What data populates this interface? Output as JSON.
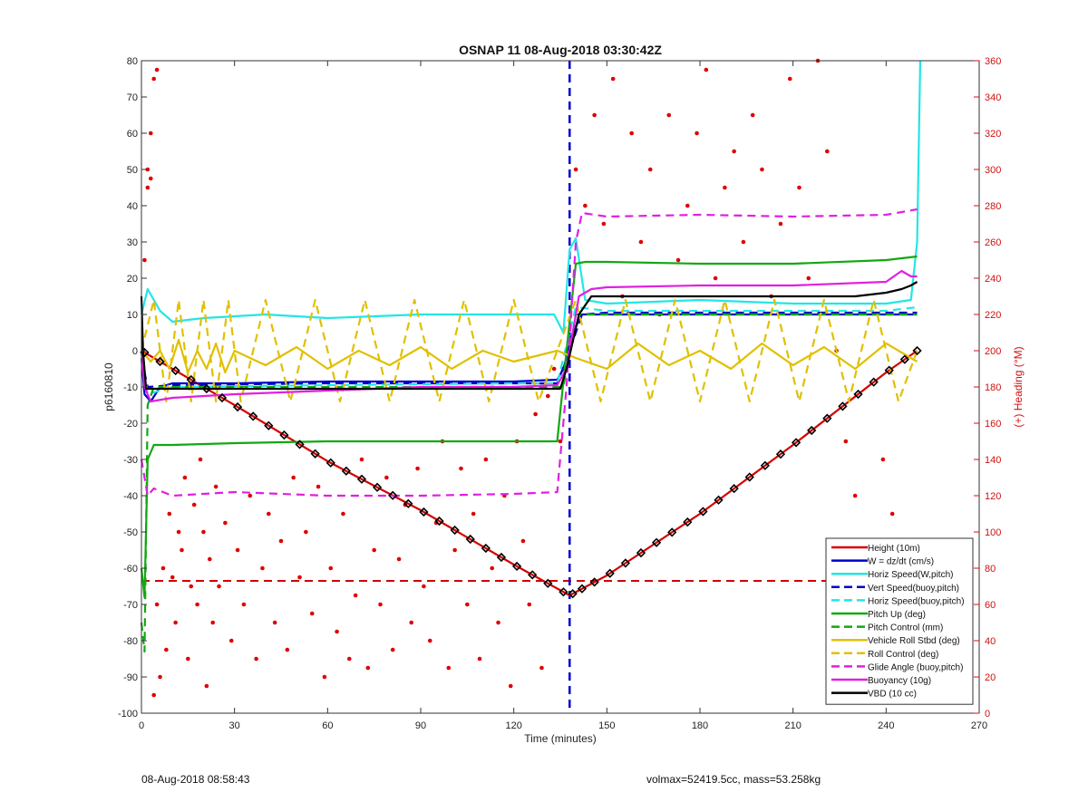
{
  "chart_data": {
    "type": "line",
    "title": "OSNAP 11 08-Aug-2018 03:30:42Z",
    "xlabel": "Time (minutes)",
    "ylabel": "p6160810",
    "y2label": "(+) Heading (°M)",
    "xlim": [
      0,
      270
    ],
    "ylim": [
      -100,
      80
    ],
    "y2lim": [
      0,
      360
    ],
    "xticks": [
      0,
      30,
      60,
      90,
      120,
      150,
      180,
      210,
      240,
      270
    ],
    "yticks": [
      80,
      70,
      60,
      50,
      40,
      30,
      20,
      10,
      0,
      -10,
      -20,
      -30,
      -40,
      -50,
      -60,
      -70,
      -80,
      -90,
      -100
    ],
    "y2ticks": [
      360,
      340,
      320,
      300,
      280,
      260,
      240,
      220,
      200,
      180,
      160,
      140,
      120,
      100,
      80,
      60,
      40,
      20,
      0
    ],
    "grid": false,
    "legend_position": "bottom-right",
    "colors": {
      "height": "#d40000",
      "w": "#0000c8",
      "horiz": "#22e6e6",
      "pitch": "#12a812",
      "roll": "#e0c000",
      "glide": "#e020e0",
      "buoy": "#e020e0",
      "vbd": "#000000",
      "heading": "#e00000"
    },
    "series": [
      {
        "name": "Height (10m)",
        "style": "solid",
        "colorKey": "height",
        "x": [
          0,
          30,
          60,
          90,
          120,
          138,
          150,
          180,
          210,
          240,
          250
        ],
        "y": [
          0,
          -15,
          -30.5,
          -44,
          -59,
          -67.5,
          -62,
          -45,
          -26,
          -6,
          0
        ]
      },
      {
        "name": "W = dz/dt (cm/s)",
        "style": "solid",
        "colorKey": "w",
        "x": [
          0,
          1,
          3,
          6,
          10,
          20,
          30,
          60,
          90,
          120,
          134,
          136,
          139,
          142,
          150,
          180,
          210,
          240,
          250
        ],
        "y": [
          -2,
          -12,
          -14,
          -10,
          -9,
          -9,
          -9,
          -8.5,
          -8.5,
          -8.5,
          -8,
          -5,
          5,
          10,
          10,
          10,
          10,
          10,
          10
        ]
      },
      {
        "name": "Horiz Speed(W,pitch)",
        "style": "solid",
        "colorKey": "horiz",
        "x": [
          0,
          2,
          6,
          10,
          20,
          40,
          60,
          90,
          120,
          133,
          136,
          138,
          140,
          143,
          150,
          180,
          210,
          240,
          248,
          250,
          251
        ],
        "y": [
          10,
          17,
          11,
          8,
          9,
          10,
          9,
          10,
          10,
          10,
          5,
          28,
          31,
          14,
          13,
          14,
          13,
          13,
          14,
          30,
          80
        ]
      },
      {
        "name": "Vert Speed(buoy,pitch)",
        "style": "dashed",
        "colorKey": "w",
        "x": [
          0,
          2,
          10,
          60,
          120,
          134,
          138,
          142,
          150,
          180,
          210,
          240,
          250
        ],
        "y": [
          -2,
          -10,
          -9.5,
          -9,
          -9,
          -9,
          0,
          10,
          10.5,
          10.5,
          10.5,
          10.5,
          10.5
        ]
      },
      {
        "name": "Horiz Speed(buoy,pitch)",
        "style": "dashed",
        "colorKey": "horiz",
        "x": [
          0,
          2,
          10,
          60,
          120,
          134,
          140,
          150,
          180,
          210,
          240,
          250
        ],
        "y": [
          -2,
          -12,
          -10,
          -9.5,
          -9,
          -9,
          12,
          11,
          11,
          11,
          11,
          12
        ]
      },
      {
        "name": "Pitch Up (deg)",
        "style": "solid",
        "colorKey": "pitch",
        "x": [
          0,
          1,
          2,
          4,
          10,
          30,
          60,
          90,
          120,
          134,
          137,
          140,
          143,
          150,
          180,
          210,
          240,
          250
        ],
        "y": [
          -60,
          -68,
          -30,
          -26,
          -26,
          -25.5,
          -25,
          -25,
          -25,
          -25,
          0,
          24,
          24.5,
          24.5,
          24,
          24,
          25,
          26
        ]
      },
      {
        "name": "Pitch Control (mm)",
        "style": "dashed",
        "colorKey": "pitch",
        "x": [
          0,
          1,
          2,
          4,
          10,
          60,
          120,
          136,
          140,
          150,
          180,
          210,
          240,
          250
        ],
        "y": [
          -75,
          -83,
          -15,
          -10,
          -10,
          -10,
          -10,
          -10,
          10,
          10,
          10,
          10,
          10,
          10
        ]
      },
      {
        "name": "Vehicle Roll Stbd (deg)",
        "style": "solid",
        "colorKey": "roll",
        "x": [
          0,
          3,
          6,
          9,
          12,
          15,
          18,
          21,
          24,
          27,
          30,
          40,
          50,
          60,
          70,
          80,
          90,
          100,
          110,
          120,
          134,
          140,
          150,
          160,
          170,
          180,
          190,
          200,
          210,
          220,
          230,
          240,
          250
        ],
        "y": [
          0,
          -3,
          0,
          -5,
          3,
          -6,
          0,
          -5,
          2,
          -6,
          0,
          -4,
          1,
          -5,
          0,
          -4,
          1,
          -5,
          0,
          -3,
          0,
          -2,
          -5,
          2,
          -4,
          0,
          -5,
          2,
          -4,
          1,
          -5,
          2,
          -3
        ]
      },
      {
        "name": "Roll Control (deg)",
        "style": "dashed",
        "colorKey": "roll",
        "x": [
          0,
          4,
          8,
          12,
          16,
          20,
          24,
          28,
          32,
          40,
          48,
          56,
          64,
          72,
          80,
          88,
          96,
          104,
          112,
          120,
          128,
          134,
          140,
          148,
          156,
          164,
          172,
          180,
          188,
          196,
          204,
          212,
          220,
          228,
          236,
          244,
          250
        ],
        "y": [
          0,
          14,
          -14,
          14,
          -14,
          14,
          -14,
          14,
          -14,
          14,
          -14,
          14,
          -14,
          14,
          -14,
          14,
          -14,
          14,
          -14,
          14,
          -14,
          0,
          14,
          -14,
          14,
          -14,
          14,
          -14,
          14,
          -14,
          14,
          -14,
          14,
          -14,
          14,
          -14,
          0
        ]
      },
      {
        "name": "Glide Angle (buoy,pitch)",
        "style": "dashed",
        "colorKey": "glide",
        "x": [
          0,
          2,
          4,
          10,
          30,
          60,
          90,
          120,
          134,
          137,
          140,
          142,
          150,
          180,
          210,
          240,
          250
        ],
        "y": [
          -30,
          -40,
          -38,
          -40,
          -39,
          -40,
          -40,
          -39.5,
          -39,
          -10,
          30,
          38,
          37,
          37.5,
          37,
          37.5,
          39
        ]
      },
      {
        "name": "Buoyancy (10g)",
        "style": "solid",
        "colorKey": "buoy",
        "x": [
          0,
          1,
          3,
          10,
          30,
          60,
          90,
          120,
          134,
          137,
          141,
          145,
          150,
          180,
          210,
          240,
          245,
          248,
          250
        ],
        "y": [
          0,
          -10,
          -14,
          -13,
          -12,
          -11,
          -10,
          -10,
          -9.5,
          -5,
          15,
          17,
          17.5,
          18,
          18,
          19,
          22,
          20.5,
          20.5
        ]
      },
      {
        "name": "VBD (10 cc)",
        "style": "solid",
        "colorKey": "vbd",
        "x": [
          0,
          0.5,
          1.5,
          10,
          60,
          120,
          135,
          137,
          141,
          145,
          150,
          180,
          210,
          230,
          240,
          245,
          248,
          250
        ],
        "y": [
          15,
          0,
          -10.5,
          -10.5,
          -10.5,
          -10.5,
          -10.5,
          -5,
          10,
          15,
          15,
          15,
          15,
          15,
          16,
          17,
          18,
          19
        ]
      }
    ],
    "reference_lines": [
      {
        "axis": "y",
        "value": -63.5,
        "style": "dashed",
        "colorKey": "height"
      },
      {
        "axis": "x",
        "value": 138,
        "style": "dashed",
        "colorKey": "w"
      }
    ],
    "markers_on_height": {
      "x": [
        1,
        6,
        11,
        16,
        21,
        26,
        31,
        36,
        41,
        46,
        51,
        56,
        61,
        66,
        71,
        76,
        81,
        86,
        91,
        96,
        101,
        106,
        111,
        116,
        121,
        126,
        131,
        136,
        139,
        142,
        146,
        151,
        156,
        161,
        166,
        171,
        176,
        181,
        186,
        191,
        196,
        201,
        206,
        211,
        216,
        221,
        226,
        231,
        236,
        241,
        246,
        250
      ]
    },
    "heading_points": {
      "x": [
        1,
        2,
        2,
        3,
        3,
        4,
        4,
        5,
        5,
        6,
        7,
        8,
        9,
        10,
        11,
        12,
        13,
        14,
        15,
        16,
        17,
        18,
        19,
        20,
        21,
        22,
        23,
        24,
        25,
        27,
        29,
        31,
        33,
        35,
        37,
        39,
        41,
        43,
        45,
        47,
        49,
        51,
        53,
        55,
        57,
        59,
        61,
        63,
        65,
        67,
        69,
        71,
        73,
        75,
        77,
        79,
        81,
        83,
        85,
        87,
        89,
        91,
        93,
        95,
        97,
        99,
        101,
        103,
        105,
        107,
        109,
        111,
        113,
        115,
        117,
        119,
        121,
        123,
        125,
        127,
        129,
        131,
        133,
        135,
        140,
        143,
        146,
        149,
        152,
        155,
        158,
        161,
        164,
        167,
        170,
        173,
        176,
        179,
        182,
        185,
        188,
        191,
        194,
        197,
        200,
        203,
        206,
        209,
        212,
        215,
        218,
        221,
        224,
        227,
        230,
        233,
        236,
        239,
        242,
        245,
        248
      ],
      "y": [
        250,
        290,
        300,
        295,
        320,
        350,
        10,
        355,
        60,
        20,
        80,
        35,
        110,
        75,
        50,
        100,
        90,
        130,
        30,
        70,
        115,
        60,
        140,
        100,
        15,
        85,
        50,
        125,
        70,
        105,
        40,
        90,
        60,
        120,
        30,
        80,
        110,
        50,
        95,
        35,
        130,
        75,
        100,
        55,
        125,
        20,
        80,
        45,
        110,
        30,
        65,
        140,
        25,
        90,
        60,
        130,
        35,
        85,
        115,
        50,
        135,
        70,
        40,
        105,
        150,
        25,
        90,
        135,
        60,
        110,
        30,
        140,
        80,
        50,
        120,
        15,
        150,
        95,
        60,
        165,
        25,
        175,
        190,
        150,
        300,
        280,
        330,
        270,
        350,
        230,
        320,
        260,
        300,
        220,
        330,
        250,
        280,
        320,
        355,
        240,
        290,
        310,
        260,
        330,
        300,
        230,
        270,
        350,
        290,
        240,
        360,
        310,
        200,
        150,
        120,
        90,
        60,
        140,
        110,
        80,
        40
      ]
    }
  },
  "footer": {
    "timestamp": "08-Aug-2018 08:58:43",
    "stats": "volmax=52419.5cc, mass=53.258kg"
  }
}
